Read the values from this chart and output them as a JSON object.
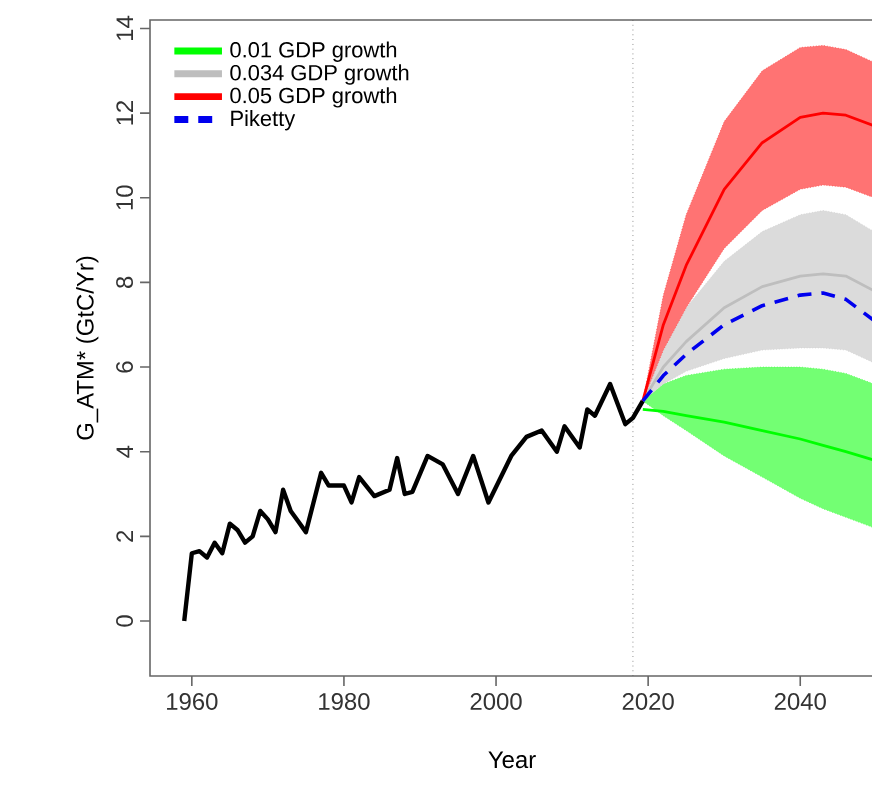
{
  "chart_data": {
    "type": "line",
    "xlabel": "Year",
    "ylabel": "G_ATM* (GtC/Yr)",
    "xlim": [
      1954.5,
      2049.7
    ],
    "ylim": [
      -1.3,
      14.2
    ],
    "xticks": [
      1960,
      1980,
      2000,
      2020,
      2040
    ],
    "yticks": [
      0,
      2,
      4,
      6,
      8,
      10,
      12,
      14
    ],
    "legend": "top left",
    "grid": false,
    "ref_lines": [
      {
        "axis": "x",
        "value": 2018,
        "color": "#555555",
        "line_style": "dotted"
      }
    ],
    "series": [
      {
        "color": "#000000",
        "line_style": "solid",
        "x": [
          1959,
          1960,
          1961,
          1962,
          1963,
          1964,
          1965,
          1966,
          1967,
          1968,
          1969,
          1970,
          1971,
          1972,
          1973,
          1974,
          1975,
          1976,
          1977,
          1978,
          1980,
          1981,
          1982,
          1984,
          1986,
          1987,
          1988,
          1989,
          1991,
          1993,
          1995,
          1997,
          1999,
          2002,
          2004,
          2006,
          2008,
          2009,
          2011,
          2012,
          2013,
          2015,
          2017,
          2018,
          2019.3
        ],
        "values": [
          0,
          1.6,
          1.65,
          1.5,
          1.85,
          1.6,
          2.3,
          2.15,
          1.85,
          2.0,
          2.6,
          2.4,
          2.1,
          3.1,
          2.6,
          2.35,
          2.1,
          2.8,
          3.5,
          3.2,
          3.2,
          2.8,
          3.4,
          2.95,
          3.1,
          3.85,
          3.0,
          3.05,
          3.9,
          3.7,
          3.0,
          3.9,
          2.8,
          3.9,
          4.35,
          4.5,
          4.0,
          4.6,
          4.1,
          5.0,
          4.85,
          5.6,
          4.65,
          4.8,
          5.2
        ]
      },
      {
        "name": "0.01 GDP growth",
        "color": "#00ff00",
        "line_style": "solid",
        "x": [
          2019.3,
          2022,
          2025,
          2030,
          2035,
          2040,
          2043,
          2046,
          2049.7
        ],
        "values": [
          5.0,
          4.95,
          4.85,
          4.7,
          4.5,
          4.3,
          4.15,
          4.0,
          3.8
        ],
        "lower": [
          5.2,
          4.85,
          4.5,
          3.9,
          3.4,
          2.9,
          2.65,
          2.45,
          2.2
        ],
        "upper": [
          5.2,
          5.6,
          5.8,
          5.95,
          6.0,
          6.0,
          5.95,
          5.85,
          5.6
        ]
      },
      {
        "name": "0.034 GDP growth",
        "color": "#bebebe",
        "line_style": "solid",
        "x": [
          2019.3,
          2022,
          2025,
          2030,
          2035,
          2040,
          2043,
          2046,
          2049.7
        ],
        "values": [
          5.2,
          6.0,
          6.6,
          7.4,
          7.9,
          8.15,
          8.2,
          8.15,
          7.8
        ],
        "lower": [
          5.2,
          5.6,
          5.9,
          6.2,
          6.4,
          6.45,
          6.45,
          6.4,
          6.1
        ],
        "upper": [
          5.2,
          6.5,
          7.4,
          8.5,
          9.2,
          9.6,
          9.7,
          9.6,
          9.2
        ]
      },
      {
        "name": "0.05 GDP growth",
        "color": "#ff0000",
        "line_style": "solid",
        "x": [
          2019.3,
          2022,
          2025,
          2030,
          2035,
          2040,
          2043,
          2046,
          2049.7
        ],
        "values": [
          5.2,
          7.0,
          8.4,
          10.2,
          11.3,
          11.9,
          12.0,
          11.95,
          11.7
        ],
        "lower": [
          5.2,
          6.4,
          7.4,
          8.8,
          9.7,
          10.2,
          10.3,
          10.25,
          10.0
        ],
        "upper": [
          5.2,
          7.7,
          9.6,
          11.8,
          13.0,
          13.55,
          13.6,
          13.5,
          13.2
        ]
      },
      {
        "name": "Piketty",
        "color": "#0000ee",
        "line_style": "dashed",
        "x": [
          2019.3,
          2022,
          2025,
          2030,
          2035,
          2040,
          2043,
          2046,
          2049.7
        ],
        "values": [
          5.2,
          5.8,
          6.3,
          7.0,
          7.45,
          7.7,
          7.75,
          7.6,
          7.1
        ]
      }
    ]
  }
}
